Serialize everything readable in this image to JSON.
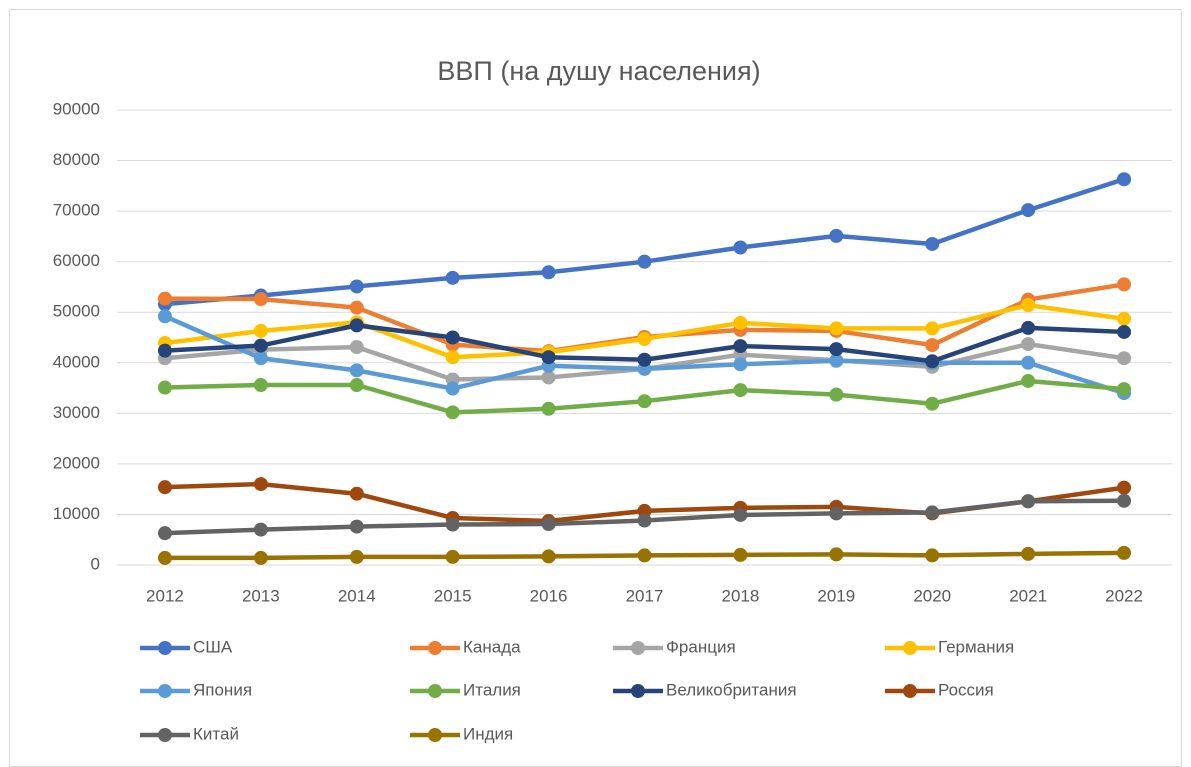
{
  "chart_data": {
    "type": "line",
    "title": "ВВП (на душу населения)",
    "x": [
      "2012",
      "2013",
      "2014",
      "2015",
      "2016",
      "2017",
      "2018",
      "2019",
      "2020",
      "2021",
      "2022"
    ],
    "ylim": [
      0,
      90000
    ],
    "yticks": [
      0,
      10000,
      20000,
      30000,
      40000,
      50000,
      60000,
      70000,
      80000,
      90000
    ],
    "grid": true,
    "series": [
      {
        "name": "США",
        "color": "#4472C4",
        "values": [
          51600,
          53300,
          55100,
          56800,
          57900,
          60000,
          62800,
          65100,
          63500,
          70200,
          76300
        ]
      },
      {
        "name": "Канада",
        "color": "#ED7D31",
        "values": [
          52700,
          52600,
          50900,
          43600,
          42300,
          45100,
          46500,
          46300,
          43500,
          52500,
          55500
        ]
      },
      {
        "name": "Франция",
        "color": "#A5A5A5",
        "values": [
          40900,
          42600,
          43100,
          36700,
          37100,
          38800,
          41600,
          40500,
          39200,
          43700,
          40900
        ]
      },
      {
        "name": "Германия",
        "color": "#FFC000",
        "values": [
          43900,
          46300,
          48000,
          41100,
          42100,
          44700,
          47900,
          46800,
          46800,
          51400,
          48700
        ]
      },
      {
        "name": "Япония",
        "color": "#5B9BD5",
        "values": [
          49200,
          40900,
          38500,
          34900,
          39400,
          38800,
          39700,
          40400,
          40000,
          40000,
          34000
        ]
      },
      {
        "name": "Италия",
        "color": "#70AD47",
        "values": [
          35100,
          35600,
          35600,
          30200,
          30900,
          32400,
          34600,
          33700,
          31900,
          36400,
          34800
        ]
      },
      {
        "name": "Великобритания",
        "color": "#264478",
        "values": [
          42400,
          43400,
          47400,
          45000,
          41100,
          40600,
          43300,
          42700,
          40300,
          46900,
          46100
        ]
      },
      {
        "name": "Россия",
        "color": "#9E480E",
        "values": [
          15400,
          16000,
          14100,
          9300,
          8700,
          10700,
          11300,
          11500,
          10200,
          12600,
          15300
        ]
      },
      {
        "name": "Китай",
        "color": "#636363",
        "values": [
          6300,
          7000,
          7600,
          8000,
          8100,
          8800,
          9900,
          10200,
          10400,
          12600,
          12700
        ]
      },
      {
        "name": "Индия",
        "color": "#997300",
        "values": [
          1400,
          1400,
          1600,
          1600,
          1700,
          1900,
          2000,
          2100,
          1900,
          2200,
          2400
        ]
      }
    ]
  }
}
